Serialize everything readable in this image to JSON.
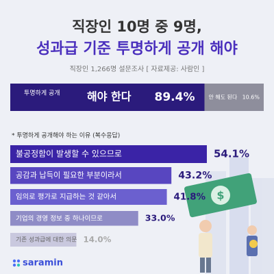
{
  "header": {
    "title_line1": "직장인 10명 중 9명,",
    "title_line2": "성과급 기준 투명하게 공개 해야",
    "subtitle": "직장인 1,266명 설문조사 [ 자료제공: 사람인 ]"
  },
  "chart_data": [
    {
      "type": "split-bar",
      "label": "투명하게 공개",
      "categories": [
        "해야 한다",
        "안 해도 된다"
      ],
      "values": [
        89.4,
        10.6
      ],
      "value_labels": [
        "89.4%",
        "10.6%"
      ],
      "colors": [
        "#2b1b7c",
        "#8e8e9c"
      ]
    },
    {
      "type": "hbar",
      "title": "* 투명하게 공개해야 하는 이유 (복수응답)",
      "categories": [
        "불공정함이 발생할 수 있으므로",
        "공감과 납득이 필요한 부분이라서",
        "임의로 평가로 지급하는 것 같아서",
        "기업의 경영 정보 중 하나이므로",
        "기존 성과급에 대한 의문"
      ],
      "values": [
        54.1,
        43.2,
        41.8,
        33.0,
        14.0
      ],
      "value_labels": [
        "54.1%",
        "43.2%",
        "41.8%",
        "33.0%",
        "14.0%"
      ],
      "colors": [
        "#3a23a6",
        "#5846c0",
        "#6b60cf",
        "#8f8cc6",
        "#c9c8de"
      ]
    }
  ],
  "logo": "saramin"
}
